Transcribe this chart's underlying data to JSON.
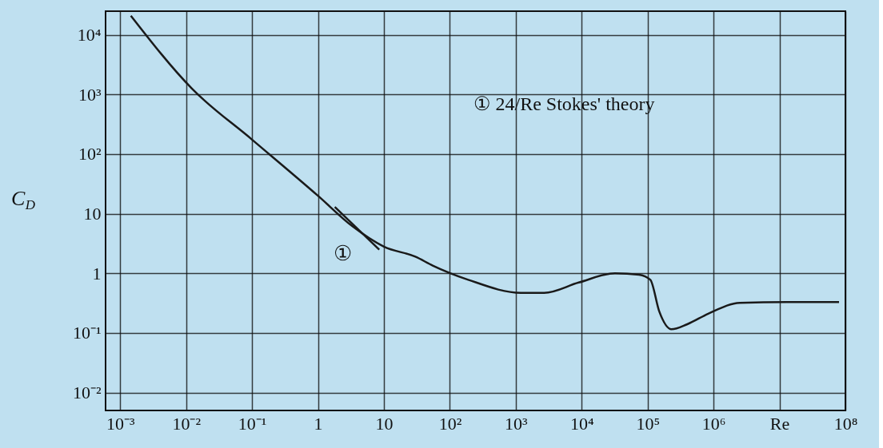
{
  "chart_data": {
    "type": "line",
    "ylabel": "C$_{D}$",
    "xlim": [
      0.0006,
      100000000
    ],
    "ylim": [
      0.005,
      25000
    ],
    "xticks": [
      {
        "value": 0.001,
        "label": "10⁻³"
      },
      {
        "value": 0.01,
        "label": "10⁻²"
      },
      {
        "value": 0.1,
        "label": "10⁻¹"
      },
      1,
      10,
      {
        "value": 100,
        "label": "10²"
      },
      {
        "value": 1000,
        "label": "10³"
      },
      {
        "value": 10000,
        "label": "10⁴"
      },
      {
        "value": 100000,
        "label": "10⁵"
      },
      {
        "value": 1000000,
        "label": "10⁶"
      },
      {
        "value": 10000000,
        "label": "Re"
      },
      {
        "value": 100000000,
        "label": "10⁸"
      }
    ],
    "yticks": [
      {
        "value": 0.01,
        "label": "10⁻²"
      },
      {
        "value": 0.1,
        "label": "10⁻¹"
      },
      1,
      10,
      {
        "value": 100,
        "label": "10²"
      },
      {
        "value": 1000,
        "label": "10³"
      },
      {
        "value": 10000,
        "label": "10⁴"
      }
    ],
    "log": "xy",
    "grid": true,
    "marker": "none",
    "line_style": "solid",
    "series": [
      {
        "color": "#1a1a1a",
        "x": [
          0.00145,
          0.0123,
          0.1,
          1,
          3.3,
          10,
          30,
          55,
          190,
          1200,
          2700,
          9000,
          32000,
          74000,
          110000,
          150000,
          230000,
          400000,
          830000,
          2500000,
          13000000,
          80000000
        ],
        "values": [
          21000,
          1250,
          175,
          20,
          6.2,
          2.8,
          1.9,
          1.35,
          0.78,
          0.47,
          0.47,
          0.7,
          1.0,
          0.95,
          0.78,
          0.23,
          0.115,
          0.14,
          0.21,
          0.32,
          0.33,
          0.33
        ]
      },
      {
        "color": "#1a1a1a",
        "x": [
          1.8,
          8.5
        ],
        "values": [
          13,
          2.5
        ]
      }
    ],
    "annotations": [
      "① 24/Re Stokes' theory",
      "①"
    ]
  }
}
